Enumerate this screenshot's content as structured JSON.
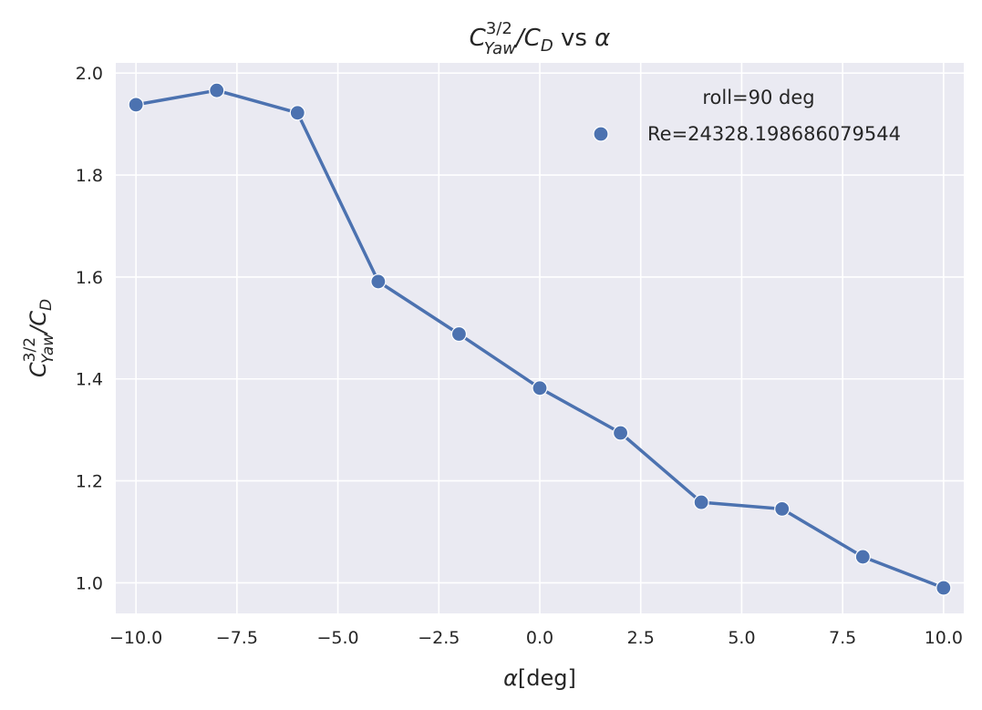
{
  "chart_data": {
    "type": "line",
    "title": {
      "base": "C",
      "sup": "3/2",
      "sub": "Yaw",
      "mid": "/C",
      "sub2": "D",
      "rest": " vs ",
      "greek": "α"
    },
    "xlabel": {
      "greek": "α",
      "rest": "[deg]"
    },
    "ylabel": {
      "base": "C",
      "sup": "3/2",
      "sub": "Yaw",
      "mid": "/C",
      "sub2": "D"
    },
    "x": [
      -10,
      -8,
      -6,
      -4,
      -2,
      0,
      2,
      4,
      6,
      8,
      10
    ],
    "series": [
      {
        "name": "Re=24328.198686079544",
        "values": [
          1.938,
          1.966,
          1.922,
          1.591,
          1.488,
          1.382,
          1.294,
          1.158,
          1.145,
          1.051,
          0.99
        ]
      }
    ],
    "xlim": [
      -10.5,
      10.5
    ],
    "ylim": [
      0.94,
      2.02
    ],
    "xticks": [
      -10.0,
      -7.5,
      -5.0,
      -2.5,
      0.0,
      2.5,
      5.0,
      7.5,
      10.0
    ],
    "xtick_labels": [
      "−10.0",
      "−7.5",
      "−5.0",
      "−2.5",
      "0.0",
      "2.5",
      "5.0",
      "7.5",
      "10.0"
    ],
    "yticks": [
      1.0,
      1.2,
      1.4,
      1.6,
      1.8,
      2.0
    ],
    "ytick_labels": [
      "1.0",
      "1.2",
      "1.4",
      "1.6",
      "1.8",
      "2.0"
    ],
    "legend": {
      "title": "roll=90 deg",
      "placement": "top-right"
    },
    "grid": true,
    "colors": {
      "series": "#4c72b0",
      "plot_bg": "#eaeaf2",
      "grid": "#ffffff",
      "text": "#262626"
    }
  }
}
